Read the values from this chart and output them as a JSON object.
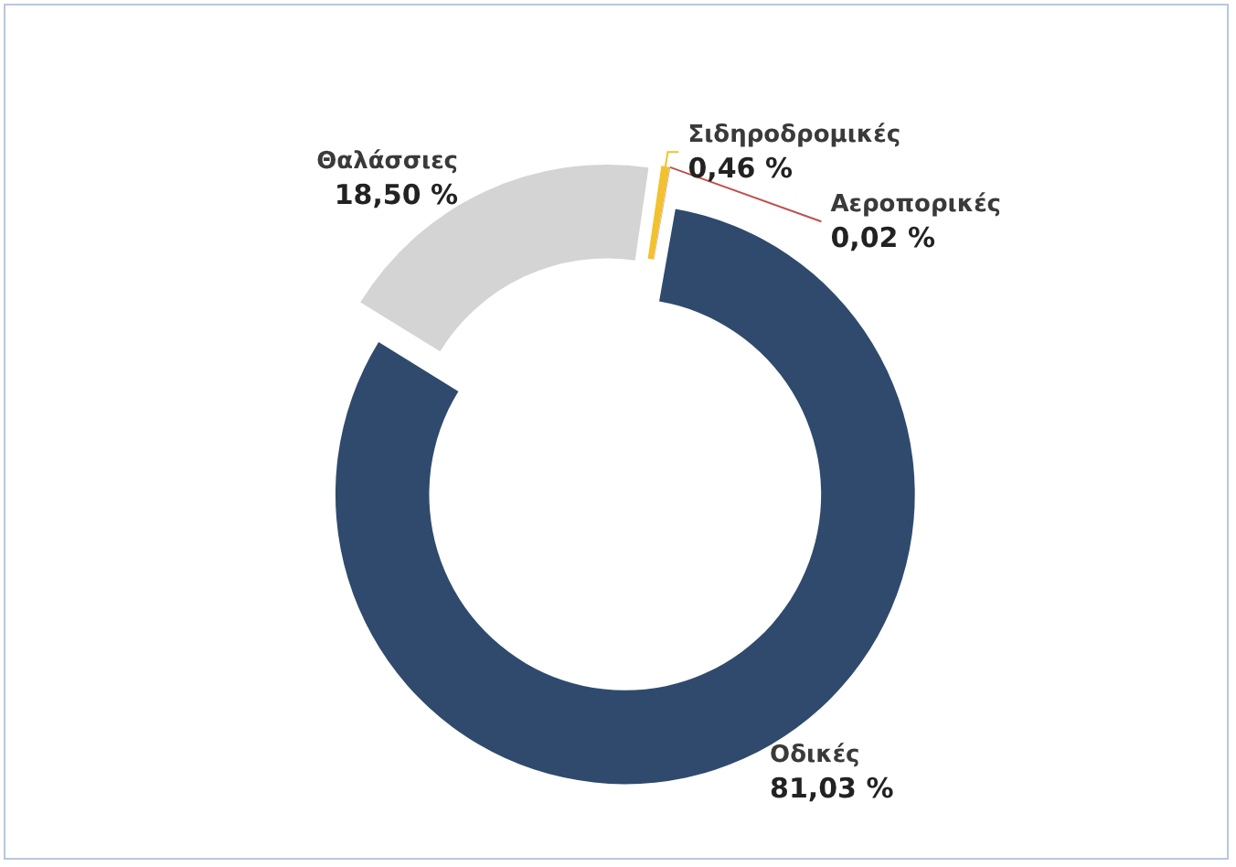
{
  "chart_data": {
    "type": "donut",
    "categories": [
      "Οδικές",
      "Θαλάσσιες",
      "Σιδηροδρομικές",
      "Αεροπορικές"
    ],
    "values": [
      81.03,
      18.5,
      0.46,
      0.02
    ],
    "value_labels": [
      "81,03 %",
      "18,50 %",
      "0,46 %",
      "0,02 %"
    ],
    "colors": [
      "#2f4a6d",
      "#d4d4d4",
      "#f2c12e",
      "#c0504d"
    ],
    "legend": false
  }
}
